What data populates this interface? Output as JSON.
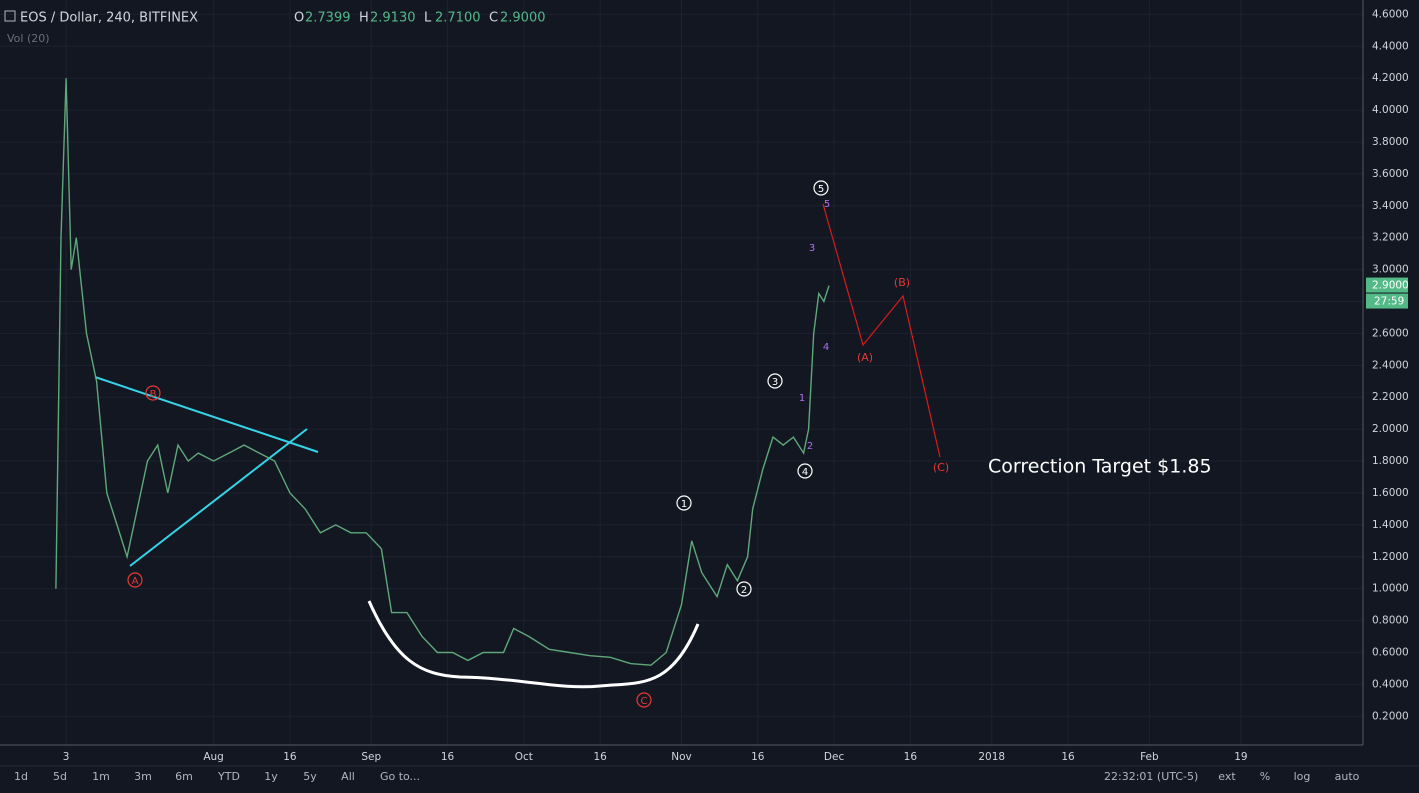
{
  "chart_data": {
    "type": "line",
    "header": {
      "symbol": "EOS / Dollar, 240, BITFINEX",
      "ohlc": [
        {
          "key": "O",
          "value": "2.7399"
        },
        {
          "key": "H",
          "value": "2.9130"
        },
        {
          "key": "L",
          "value": "2.7100"
        },
        {
          "key": "C",
          "value": "2.9000"
        }
      ],
      "indicator": "Vol (20)"
    },
    "x": [
      "2017-07-01",
      "2017-07-02",
      "2017-07-03",
      "2017-07-04",
      "2017-07-05",
      "2017-07-07",
      "2017-07-09",
      "2017-07-11",
      "2017-07-13",
      "2017-07-15",
      "2017-07-17",
      "2017-07-19",
      "2017-07-21",
      "2017-07-23",
      "2017-07-25",
      "2017-07-27",
      "2017-07-29",
      "2017-08-01",
      "2017-08-04",
      "2017-08-07",
      "2017-08-10",
      "2017-08-13",
      "2017-08-16",
      "2017-08-19",
      "2017-08-22",
      "2017-08-25",
      "2017-08-28",
      "2017-08-31",
      "2017-09-03",
      "2017-09-05",
      "2017-09-08",
      "2017-09-11",
      "2017-09-14",
      "2017-09-17",
      "2017-09-20",
      "2017-09-23",
      "2017-09-27",
      "2017-09-29",
      "2017-10-02",
      "2017-10-06",
      "2017-10-10",
      "2017-10-14",
      "2017-10-18",
      "2017-10-22",
      "2017-10-26",
      "2017-10-29",
      "2017-11-01",
      "2017-11-03",
      "2017-11-05",
      "2017-11-08",
      "2017-11-10",
      "2017-11-12",
      "2017-11-14",
      "2017-11-15",
      "2017-11-17",
      "2017-11-19",
      "2017-11-21",
      "2017-11-23",
      "2017-11-25",
      "2017-11-26",
      "2017-11-27",
      "2017-11-28",
      "2017-11-29",
      "2017-11-30"
    ],
    "series": [
      {
        "color": "#5fa87a",
        "values": [
          1.0,
          3.2,
          4.2,
          3.0,
          3.2,
          2.6,
          2.3,
          1.6,
          1.4,
          1.2,
          1.5,
          1.8,
          1.9,
          1.6,
          1.9,
          1.8,
          1.85,
          1.8,
          1.85,
          1.9,
          1.85,
          1.8,
          1.6,
          1.5,
          1.35,
          1.4,
          1.35,
          1.35,
          1.25,
          0.85,
          0.85,
          0.7,
          0.6,
          0.6,
          0.55,
          0.6,
          0.6,
          0.75,
          0.7,
          0.62,
          0.6,
          0.58,
          0.57,
          0.53,
          0.52,
          0.6,
          0.9,
          1.3,
          1.1,
          0.95,
          1.15,
          1.05,
          1.2,
          1.5,
          1.75,
          1.95,
          1.9,
          1.95,
          1.85,
          2.0,
          2.6,
          2.85,
          2.8,
          2.9
        ]
      }
    ],
    "xlim": [
      "2017-06-20",
      "2018-03-15"
    ],
    "xticks": [
      {
        "value": "2017-07-03",
        "label": "3"
      },
      {
        "value": "2017-08-01",
        "label": "Aug"
      },
      {
        "value": "2017-08-16",
        "label": "16"
      },
      {
        "value": "2017-09-01",
        "label": "Sep"
      },
      {
        "value": "2017-09-16",
        "label": "16"
      },
      {
        "value": "2017-10-01",
        "label": "Oct"
      },
      {
        "value": "2017-10-16",
        "label": "16"
      },
      {
        "value": "2017-11-01",
        "label": "Nov"
      },
      {
        "value": "2017-11-16",
        "label": "16"
      },
      {
        "value": "2017-12-01",
        "label": "Dec"
      },
      {
        "value": "2017-12-16",
        "label": "16"
      },
      {
        "value": "2018-01-01",
        "label": "2018"
      },
      {
        "value": "2018-01-16",
        "label": "16"
      },
      {
        "value": "2018-02-01",
        "label": "Feb"
      },
      {
        "value": "2018-02-19",
        "label": "19"
      }
    ],
    "ylim": [
      0.02,
      4.69
    ],
    "yticks": [
      {
        "value": 0.2,
        "label": "0.2000"
      },
      {
        "value": 0.4,
        "label": "0.4000"
      },
      {
        "value": 0.6,
        "label": "0.6000"
      },
      {
        "value": 0.8,
        "label": "0.8000"
      },
      {
        "value": 1.0,
        "label": "1.0000"
      },
      {
        "value": 1.2,
        "label": "1.2000"
      },
      {
        "value": 1.4,
        "label": "1.4000"
      },
      {
        "value": 1.6,
        "label": "1.6000"
      },
      {
        "value": 1.8,
        "label": "1.8000"
      },
      {
        "value": 2.0,
        "label": "2.0000"
      },
      {
        "value": 2.2,
        "label": "2.2000"
      },
      {
        "value": 2.4,
        "label": "2.4000"
      },
      {
        "value": 2.6,
        "label": "2.6000"
      },
      {
        "value": 2.8,
        "label": "2.8000"
      },
      {
        "value": 3.0,
        "label": "3.0000"
      },
      {
        "value": 3.2,
        "label": "3.2000"
      },
      {
        "value": 3.4,
        "label": "3.4000"
      },
      {
        "value": 3.6,
        "label": "3.6000"
      },
      {
        "value": 3.8,
        "label": "3.8000"
      },
      {
        "value": 4.0,
        "label": "4.0000"
      },
      {
        "value": 4.2,
        "label": "4.2000"
      },
      {
        "value": 4.4,
        "label": "4.4000"
      },
      {
        "value": 4.6,
        "label": "4.6000"
      }
    ],
    "grid": true,
    "price_tag": {
      "value": 2.9,
      "label": "2.9000",
      "countdown": "27:59"
    },
    "wave_labels": [
      "1",
      "2",
      "3",
      "4",
      "5"
    ],
    "abc_labels": [
      "A",
      "B",
      "C"
    ],
    "subwave_labels": [
      "1",
      "2",
      "3",
      "4",
      "5"
    ],
    "correction_labels": [
      "(A)",
      "(B)",
      "(C)"
    ],
    "target_text": "Correction Target $1.85"
  },
  "toolbar": {
    "ranges": [
      "1d",
      "5d",
      "1m",
      "3m",
      "6m",
      "YTD",
      "1y",
      "5y",
      "All",
      "Go to..."
    ],
    "clock": "22:32:01 (UTC-5)",
    "options": [
      "ext",
      "%",
      "log",
      "auto"
    ]
  }
}
